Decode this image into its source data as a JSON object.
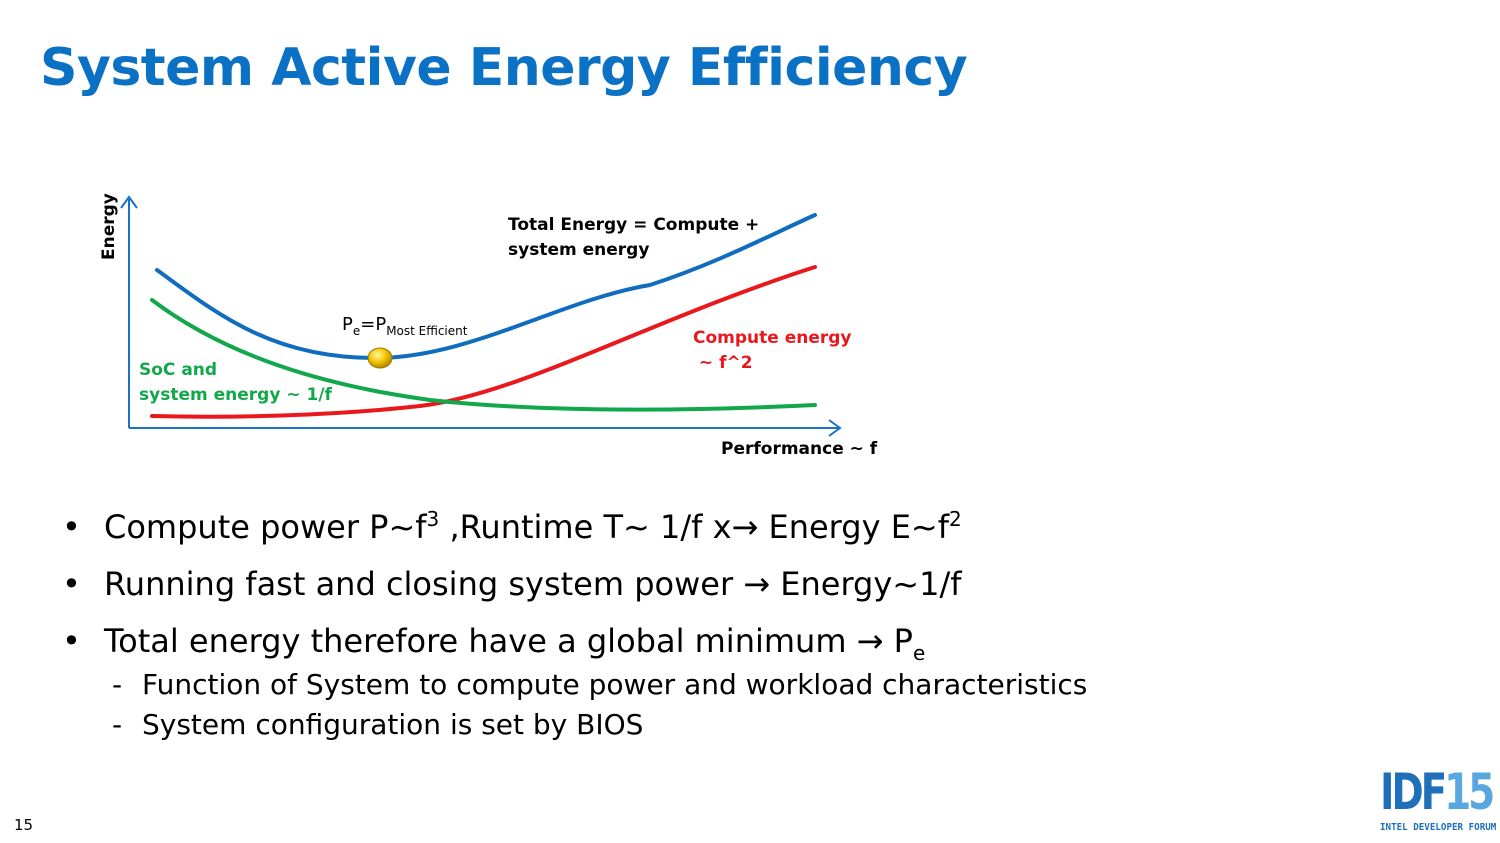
{
  "slide": {
    "title": "System Active Energy Efficiency",
    "page_number": "15"
  },
  "diagram": {
    "y_axis_label": "Energy",
    "x_axis_label": "Performance ~ f",
    "total_label_line1": "Total Energy = Compute +",
    "total_label_line2": "system energy",
    "compute_label_line1": "Compute energy",
    "compute_label_line2": " ~ f^2",
    "soc_label_line1": "SoC and",
    "soc_label_line2": "system energy ~ 1/f",
    "point_label_main": "P",
    "point_label_sub1": "e",
    "point_label_eq": "=P",
    "point_label_sub2": "Most Efficient",
    "colors": {
      "axis": "#1a73c6",
      "total": "#0f6cbf",
      "compute": "#e8181c",
      "soc": "#10a84a",
      "point": "#f2c400"
    }
  },
  "bullets": {
    "b1_a": "Compute power P~f",
    "b1_sup1": "3",
    "b1_b": " ,Runtime T~ 1/f x",
    "b1_arrow": "→",
    "b1_c": " Energy E~f",
    "b1_sup2": "2",
    "b2_a": "Running fast and closing system power ",
    "b2_arrow": "→",
    "b2_b": " Energy~1/f",
    "b3_a": "Total energy therefore have a global minimum ",
    "b3_arrow": "→",
    "b3_b": " P",
    "b3_sub": "e",
    "sub1": "Function of System to compute power and workload characteristics",
    "sub2": "System configuration is set by BIOS",
    "bullet_char": "•",
    "dash_char": "-"
  },
  "logo": {
    "main_letters": "IDF",
    "main_number": "15",
    "tagline": "INTEL DEVELOPER FORUM"
  }
}
